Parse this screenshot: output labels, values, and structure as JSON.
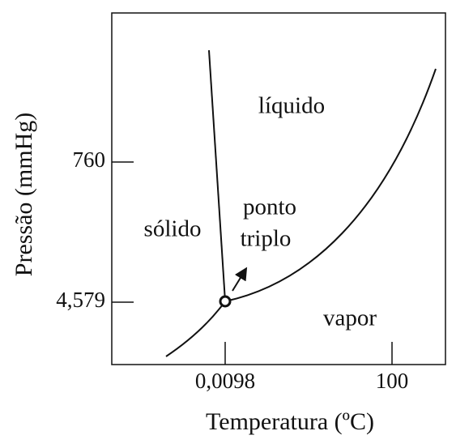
{
  "axes": {
    "x_label": "Temperatura (ºC)",
    "y_label": "Pressão (mmHg)",
    "x_ticks": [
      "0,0098",
      "100"
    ],
    "y_ticks": [
      "760",
      "4,579"
    ]
  },
  "regions": {
    "liquid": "líquido",
    "solid": "sólido",
    "vapor": "vapor"
  },
  "annotation": {
    "line1": "ponto",
    "line2": "triplo"
  }
}
